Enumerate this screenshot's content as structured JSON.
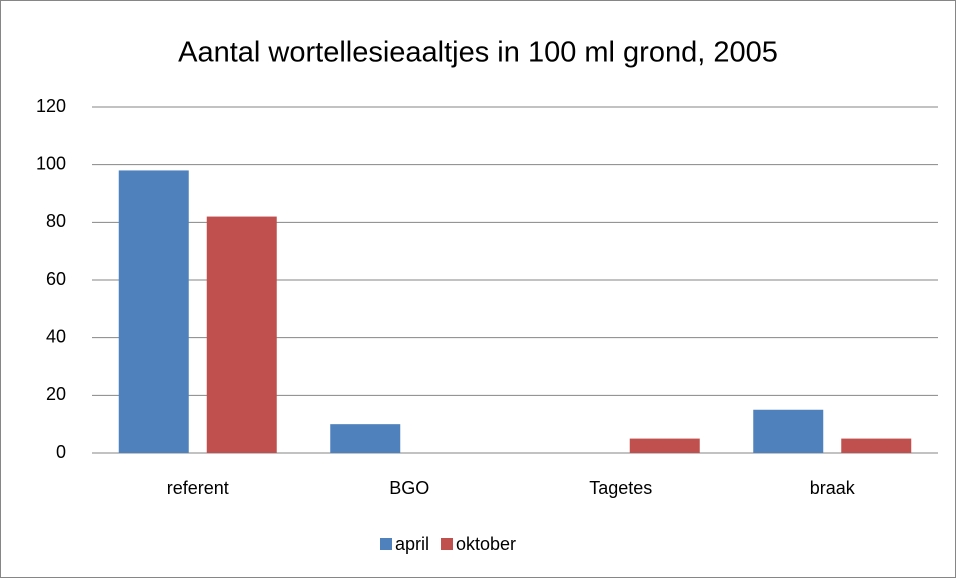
{
  "chart_data": {
    "type": "bar",
    "title": "Aantal wortellesieaaltjes in 100 ml grond, 2005",
    "categories": [
      "referent",
      "BGO",
      "Tagetes",
      "braak"
    ],
    "series": [
      {
        "name": "april",
        "color": "#4f81bd",
        "values": [
          98,
          10,
          0,
          15
        ]
      },
      {
        "name": "oktober",
        "color": "#c0504d",
        "values": [
          82,
          0,
          5,
          5
        ]
      }
    ],
    "ylim": [
      0,
      120
    ],
    "yticks": [
      0,
      20,
      40,
      60,
      80,
      100,
      120
    ],
    "grid": true,
    "legend": "bottom"
  }
}
